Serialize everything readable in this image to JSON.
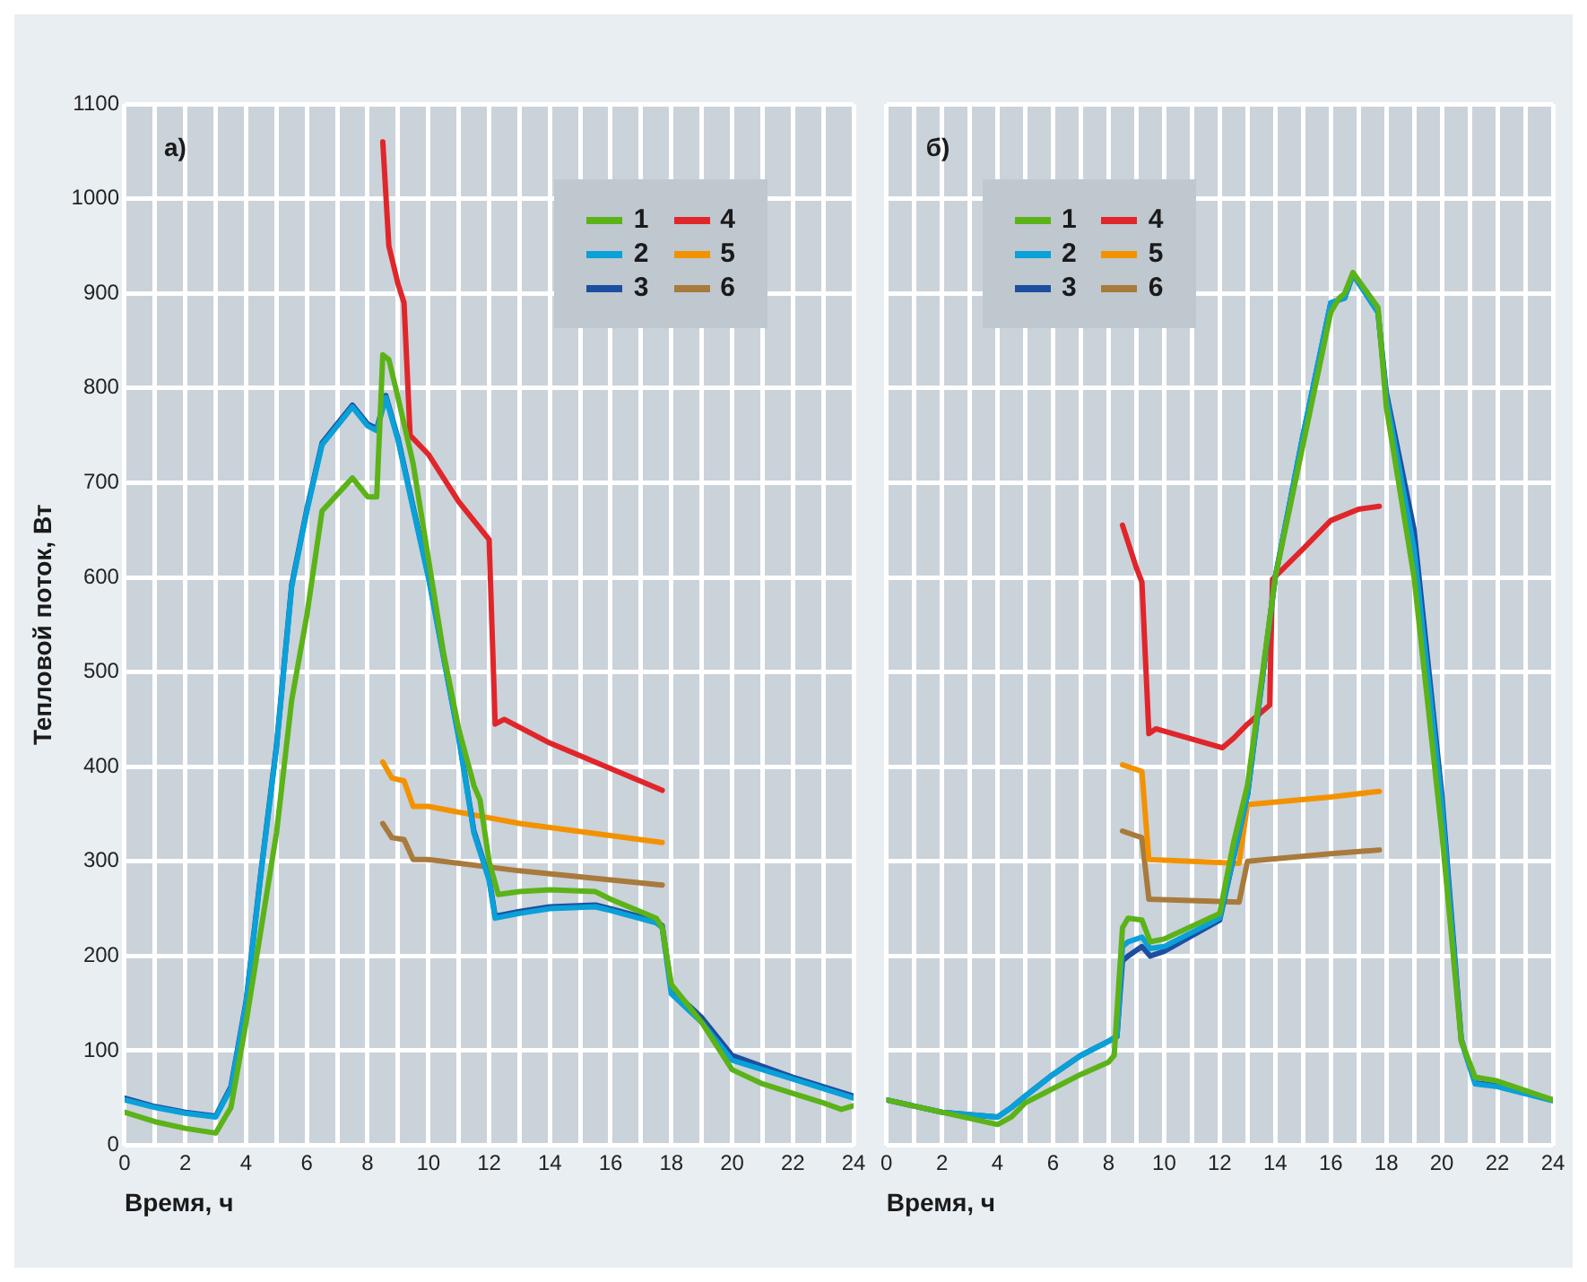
{
  "chart_data": [
    {
      "type": "line",
      "annotations": [
        "а)"
      ],
      "xlabel": "Время, ч",
      "ylabel": "Тепловой поток, Вт",
      "xlim": [
        0,
        24
      ],
      "ylim": [
        0,
        1100
      ],
      "xticks": [
        0,
        {
          "value": 1,
          "label": null
        },
        2,
        {
          "value": 3,
          "label": null
        },
        4,
        {
          "value": 5,
          "label": null
        },
        6,
        {
          "value": 7,
          "label": null
        },
        8,
        {
          "value": 9,
          "label": null
        },
        10,
        {
          "value": 11,
          "label": null
        },
        12,
        {
          "value": 13,
          "label": null
        },
        14,
        {
          "value": 15,
          "label": null
        },
        16,
        {
          "value": 17,
          "label": null
        },
        18,
        {
          "value": 19,
          "label": null
        },
        20,
        {
          "value": 21,
          "label": null
        },
        22,
        {
          "value": 23,
          "label": null
        },
        24
      ],
      "yticks": [
        0,
        100,
        200,
        300,
        400,
        500,
        600,
        700,
        800,
        900,
        1000,
        1100
      ],
      "grid": true,
      "legend": "top right",
      "marker": "none",
      "line_style": "solid",
      "series": [
        {
          "name": "1",
          "color": "#5bb318",
          "x": [
            0,
            1,
            2,
            3,
            3.5,
            4,
            5,
            5.5,
            6,
            6.5,
            7.5,
            8,
            8.3,
            8.5,
            8.7,
            9,
            9.5,
            10,
            10.5,
            11,
            11.5,
            11.7,
            12,
            12.3,
            13,
            14,
            15.5,
            16,
            17.5,
            17.7,
            18,
            19,
            20,
            21,
            22,
            23,
            23.6,
            24
          ],
          "values": [
            35,
            25,
            18,
            13,
            40,
            130,
            330,
            470,
            560,
            670,
            705,
            685,
            685,
            835,
            830,
            790,
            720,
            620,
            520,
            440,
            380,
            365,
            300,
            265,
            268,
            270,
            268,
            260,
            240,
            230,
            170,
            130,
            80,
            65,
            55,
            45,
            38,
            42
          ]
        },
        {
          "name": "2",
          "color": "#0aa0d8",
          "x": [
            0,
            1,
            2,
            3,
            3.5,
            4,
            4.5,
            5,
            5.5,
            6,
            6.5,
            7,
            7.5,
            8,
            8.3,
            8.6,
            9,
            10,
            11,
            11.5,
            12,
            12.2,
            13,
            14,
            15.5,
            16,
            17.5,
            17.7,
            18,
            19,
            20,
            22,
            24
          ],
          "values": [
            48,
            40,
            34,
            30,
            60,
            150,
            290,
            420,
            590,
            670,
            740,
            760,
            780,
            760,
            755,
            790,
            745,
            600,
            430,
            330,
            280,
            240,
            245,
            250,
            252,
            248,
            235,
            230,
            160,
            130,
            90,
            70,
            50
          ]
        },
        {
          "name": "3",
          "color": "#1d4fa0",
          "x": [
            0,
            1,
            2,
            3,
            3.5,
            4,
            4.5,
            5,
            5.5,
            6,
            6.5,
            7,
            7.5,
            8,
            8.3,
            8.6,
            9,
            10,
            11,
            11.5,
            12,
            12.2,
            13,
            14,
            15.5,
            16,
            17.5,
            17.7,
            18,
            19,
            20,
            22,
            24
          ],
          "values": [
            50,
            41,
            35,
            31,
            62,
            152,
            292,
            422,
            592,
            672,
            742,
            762,
            782,
            762,
            757,
            792,
            747,
            602,
            432,
            332,
            282,
            242,
            247,
            252,
            254,
            250,
            237,
            232,
            165,
            135,
            95,
            72,
            52
          ]
        },
        {
          "name": "4",
          "color": "#e0262a",
          "x": [
            8.5,
            8.7,
            9,
            9.2,
            9.4,
            10,
            11,
            12,
            12.2,
            12.5,
            14,
            17.7
          ],
          "values": [
            1060,
            950,
            910,
            890,
            750,
            730,
            680,
            640,
            445,
            450,
            425,
            375
          ]
        },
        {
          "name": "5",
          "color": "#f39200",
          "x": [
            8.5,
            8.8,
            9.2,
            9.5,
            10,
            13,
            17.7
          ],
          "values": [
            405,
            388,
            385,
            358,
            358,
            340,
            320
          ]
        },
        {
          "name": "6",
          "color": "#a87a3c",
          "x": [
            8.5,
            8.8,
            9.2,
            9.5,
            10,
            13,
            17.7
          ],
          "values": [
            340,
            325,
            323,
            302,
            302,
            290,
            275
          ]
        }
      ]
    },
    {
      "type": "line",
      "annotations": [
        "б)"
      ],
      "xlabel": "Время, ч",
      "xlim": [
        0,
        24
      ],
      "ylim": [
        0,
        1100
      ],
      "tick_labels": "x",
      "xticks": [
        0,
        {
          "value": 1,
          "label": null
        },
        2,
        {
          "value": 3,
          "label": null
        },
        4,
        {
          "value": 5,
          "label": null
        },
        6,
        {
          "value": 7,
          "label": null
        },
        8,
        {
          "value": 9,
          "label": null
        },
        10,
        {
          "value": 11,
          "label": null
        },
        12,
        {
          "value": 13,
          "label": null
        },
        14,
        {
          "value": 15,
          "label": null
        },
        16,
        {
          "value": 17,
          "label": null
        },
        18,
        {
          "value": 19,
          "label": null
        },
        20,
        {
          "value": 21,
          "label": null
        },
        22,
        {
          "value": 23,
          "label": null
        },
        24
      ],
      "yticks": [
        0,
        100,
        200,
        300,
        400,
        500,
        600,
        700,
        800,
        900,
        1000,
        1100
      ],
      "grid": true,
      "legend": "top left",
      "marker": "none",
      "line_style": "solid",
      "series": [
        {
          "name": "1",
          "color": "#5bb318",
          "x": [
            0,
            2,
            4,
            4.5,
            5,
            6,
            7,
            8,
            8.2,
            8.5,
            8.7,
            9.2,
            9.5,
            10,
            12,
            12.5,
            13,
            14,
            15,
            16,
            16.3,
            16.5,
            16.8,
            17.7,
            18,
            19,
            20,
            20.7,
            21.2,
            22,
            24
          ],
          "values": [
            48,
            35,
            22,
            30,
            45,
            60,
            75,
            88,
            95,
            230,
            240,
            238,
            215,
            218,
            245,
            320,
            380,
            600,
            740,
            880,
            895,
            900,
            922,
            885,
            780,
            600,
            330,
            110,
            72,
            68,
            48
          ]
        },
        {
          "name": "2",
          "color": "#0aa0d8",
          "x": [
            0,
            2,
            4,
            4.5,
            5,
            6,
            7,
            8,
            8.3,
            8.5,
            8.7,
            9.2,
            9.5,
            10,
            12,
            13,
            14,
            15,
            16,
            16.5,
            16.8,
            17.7,
            18,
            19,
            20,
            20.7,
            21.2,
            22,
            24
          ],
          "values": [
            48,
            35,
            30,
            40,
            52,
            75,
            95,
            110,
            115,
            210,
            215,
            220,
            208,
            210,
            240,
            370,
            600,
            750,
            890,
            895,
            920,
            880,
            790,
            630,
            360,
            110,
            65,
            62,
            47
          ]
        },
        {
          "name": "3",
          "color": "#1d4fa0",
          "x": [
            0,
            2,
            4,
            4.5,
            5,
            6,
            7,
            8,
            8.3,
            8.5,
            8.7,
            9.2,
            9.5,
            10,
            12,
            13,
            14,
            15,
            16,
            16.5,
            16.8,
            17.7,
            18,
            19,
            20,
            20.7,
            21.2,
            22,
            24
          ],
          "values": [
            48,
            35,
            30,
            40,
            52,
            75,
            95,
            110,
            115,
            195,
            200,
            210,
            200,
            205,
            238,
            370,
            600,
            750,
            890,
            895,
            920,
            880,
            795,
            650,
            370,
            112,
            66,
            63,
            48
          ]
        },
        {
          "name": "4",
          "color": "#e0262a",
          "x": [
            8.5,
            9,
            9.2,
            9.45,
            9.7,
            12.1,
            12.5,
            13,
            13.8,
            13.9,
            15,
            16,
            17,
            17.75
          ],
          "values": [
            655,
            610,
            595,
            435,
            440,
            420,
            430,
            445,
            465,
            598,
            630,
            660,
            672,
            675
          ]
        },
        {
          "name": "5",
          "color": "#f39200",
          "x": [
            8.5,
            9.2,
            9.45,
            12.7,
            13,
            16,
            17.75
          ],
          "values": [
            402,
            395,
            302,
            298,
            360,
            368,
            374
          ]
        },
        {
          "name": "6",
          "color": "#a87a3c",
          "x": [
            8.5,
            9.2,
            9.45,
            12.7,
            13,
            16,
            17.75
          ],
          "values": [
            332,
            325,
            260,
            257,
            300,
            308,
            312
          ]
        }
      ]
    }
  ]
}
